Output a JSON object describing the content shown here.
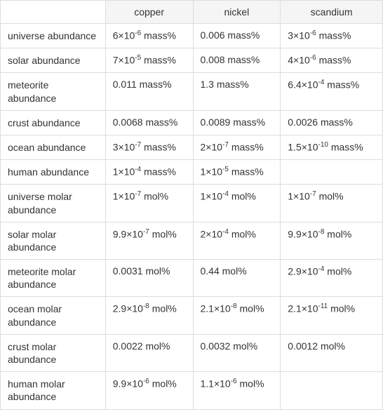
{
  "table": {
    "columns": [
      "",
      "copper",
      "nickel",
      "scandium"
    ],
    "rows": [
      {
        "label": "universe abundance",
        "copper": {
          "base": "6×10",
          "exp": "-6",
          "unit": " mass%"
        },
        "nickel": {
          "base": "0.006 mass%",
          "exp": null,
          "unit": ""
        },
        "scandium": {
          "base": "3×10",
          "exp": "-6",
          "unit": " mass%"
        }
      },
      {
        "label": "solar abundance",
        "copper": {
          "base": "7×10",
          "exp": "-5",
          "unit": " mass%"
        },
        "nickel": {
          "base": "0.008 mass%",
          "exp": null,
          "unit": ""
        },
        "scandium": {
          "base": "4×10",
          "exp": "-6",
          "unit": " mass%"
        }
      },
      {
        "label": "meteorite abundance",
        "copper": {
          "base": "0.011 mass%",
          "exp": null,
          "unit": ""
        },
        "nickel": {
          "base": "1.3 mass%",
          "exp": null,
          "unit": ""
        },
        "scandium": {
          "base": "6.4×10",
          "exp": "-4",
          "unit": " mass%"
        }
      },
      {
        "label": "crust abundance",
        "copper": {
          "base": "0.0068 mass%",
          "exp": null,
          "unit": ""
        },
        "nickel": {
          "base": "0.0089 mass%",
          "exp": null,
          "unit": ""
        },
        "scandium": {
          "base": "0.0026 mass%",
          "exp": null,
          "unit": ""
        }
      },
      {
        "label": "ocean abundance",
        "copper": {
          "base": "3×10",
          "exp": "-7",
          "unit": " mass%"
        },
        "nickel": {
          "base": "2×10",
          "exp": "-7",
          "unit": " mass%"
        },
        "scandium": {
          "base": "1.5×10",
          "exp": "-10",
          "unit": " mass%"
        }
      },
      {
        "label": "human abundance",
        "copper": {
          "base": "1×10",
          "exp": "-4",
          "unit": " mass%"
        },
        "nickel": {
          "base": "1×10",
          "exp": "-5",
          "unit": " mass%"
        },
        "scandium": {
          "base": "",
          "exp": null,
          "unit": ""
        }
      },
      {
        "label": "universe molar abundance",
        "copper": {
          "base": "1×10",
          "exp": "-7",
          "unit": " mol%"
        },
        "nickel": {
          "base": "1×10",
          "exp": "-4",
          "unit": " mol%"
        },
        "scandium": {
          "base": "1×10",
          "exp": "-7",
          "unit": " mol%"
        }
      },
      {
        "label": "solar molar abundance",
        "copper": {
          "base": "9.9×10",
          "exp": "-7",
          "unit": " mol%"
        },
        "nickel": {
          "base": "2×10",
          "exp": "-4",
          "unit": " mol%"
        },
        "scandium": {
          "base": "9.9×10",
          "exp": "-8",
          "unit": " mol%"
        }
      },
      {
        "label": "meteorite molar abundance",
        "copper": {
          "base": "0.0031 mol%",
          "exp": null,
          "unit": ""
        },
        "nickel": {
          "base": "0.44 mol%",
          "exp": null,
          "unit": ""
        },
        "scandium": {
          "base": "2.9×10",
          "exp": "-4",
          "unit": " mol%"
        }
      },
      {
        "label": "ocean molar abundance",
        "copper": {
          "base": "2.9×10",
          "exp": "-8",
          "unit": " mol%"
        },
        "nickel": {
          "base": "2.1×10",
          "exp": "-8",
          "unit": " mol%"
        },
        "scandium": {
          "base": "2.1×10",
          "exp": "-11",
          "unit": " mol%"
        }
      },
      {
        "label": "crust molar abundance",
        "copper": {
          "base": "0.0022 mol%",
          "exp": null,
          "unit": ""
        },
        "nickel": {
          "base": "0.0032 mol%",
          "exp": null,
          "unit": ""
        },
        "scandium": {
          "base": "0.0012 mol%",
          "exp": null,
          "unit": ""
        }
      },
      {
        "label": "human molar abundance",
        "copper": {
          "base": "9.9×10",
          "exp": "-6",
          "unit": " mol%"
        },
        "nickel": {
          "base": "1.1×10",
          "exp": "-6",
          "unit": " mol%"
        },
        "scandium": {
          "base": "",
          "exp": null,
          "unit": ""
        }
      }
    ],
    "header_bg": "#f5f5f5",
    "border_color": "#ddd",
    "text_color": "#333",
    "fontsize": 14
  }
}
